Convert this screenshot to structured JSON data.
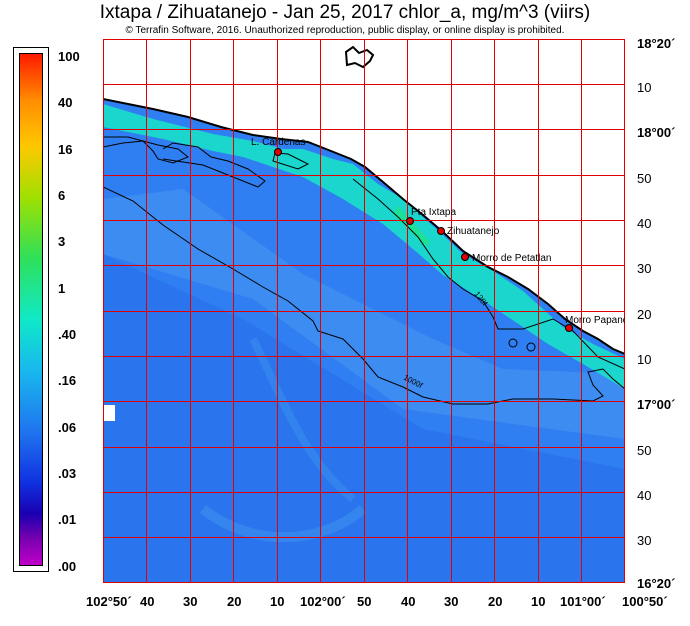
{
  "header": {
    "title": "Ixtapa / Zihuatanejo - Jan 25, 2017  chlor_a, mg/m^3 (viirs)",
    "copyright": "© Terrafin Software,  2016.  Unauthorized reproduction, public display, or online display is prohibited."
  },
  "legend": {
    "labels": [
      "100",
      "40",
      "16",
      "6",
      "3",
      "1",
      ".40",
      ".16",
      ".06",
      ".03",
      ".01",
      ".00"
    ]
  },
  "map": {
    "places": [
      "L. Cardenas",
      "Pta Ixtapa",
      "Zihuatanejo",
      "Morro de Petatlan",
      "Morro Papanoa"
    ],
    "contours": [
      "120f",
      "1000f"
    ],
    "lat_labels": [
      "18°20´",
      "10",
      "18°00´",
      "50",
      "40",
      "30",
      "20",
      "10",
      "17°00´",
      "50",
      "40",
      "30",
      "16°20´"
    ],
    "lon_labels": [
      "102°50´",
      "40",
      "30",
      "20",
      "10",
      "102°00´",
      "50",
      "40",
      "30",
      "20",
      "10",
      "101°00´",
      "100°50´"
    ]
  },
  "colors": {
    "grid": "#e00000",
    "ocean": "#2f7ff2",
    "ocean_dark": "#2568e8",
    "ocean_light": "#4aa6f0",
    "coastal": "#18e0c8",
    "near_shore": "#1ee28c",
    "land": "#ffffff",
    "marker": "#e00000"
  }
}
